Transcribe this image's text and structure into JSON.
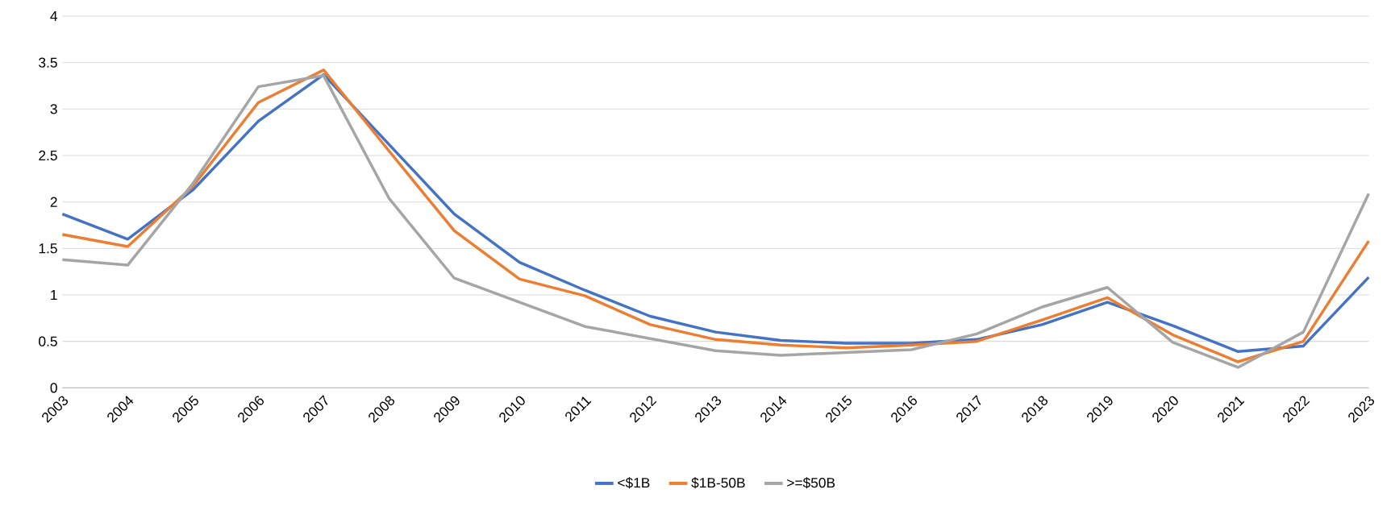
{
  "chart_data": {
    "type": "line",
    "categories": [
      "2003",
      "2004",
      "2005",
      "2006",
      "2007",
      "2008",
      "2009",
      "2010",
      "2011",
      "2012",
      "2013",
      "2014",
      "2015",
      "2016",
      "2017",
      "2018",
      "2019",
      "2020",
      "2021",
      "2022",
      "2023"
    ],
    "series": [
      {
        "name": "<$1B",
        "color": "#4472c4",
        "values": [
          1.87,
          1.6,
          2.13,
          2.87,
          3.37,
          2.62,
          1.87,
          1.35,
          1.05,
          0.77,
          0.6,
          0.51,
          0.48,
          0.48,
          0.52,
          0.68,
          0.92,
          0.67,
          0.39,
          0.45,
          1.19
        ]
      },
      {
        "name": "$1B-50B",
        "color": "#ed7d31",
        "values": [
          1.65,
          1.52,
          2.17,
          3.07,
          3.42,
          2.55,
          1.69,
          1.17,
          0.99,
          0.68,
          0.52,
          0.46,
          0.43,
          0.46,
          0.5,
          0.73,
          0.97,
          0.57,
          0.28,
          0.5,
          1.58
        ]
      },
      {
        "name": ">=$50B",
        "color": "#a5a5a5",
        "values": [
          1.38,
          1.32,
          2.2,
          3.24,
          3.36,
          2.04,
          1.18,
          0.92,
          0.66,
          0.53,
          0.4,
          0.35,
          0.38,
          0.41,
          0.58,
          0.87,
          1.08,
          0.49,
          0.22,
          0.6,
          2.09
        ]
      }
    ],
    "ylim": [
      0,
      4
    ],
    "yticks": [
      0,
      0.5,
      1,
      1.5,
      2,
      2.5,
      3,
      3.5,
      4
    ],
    "grid": "y",
    "legend": "bottom",
    "marker": "none",
    "line_style": "solid"
  }
}
